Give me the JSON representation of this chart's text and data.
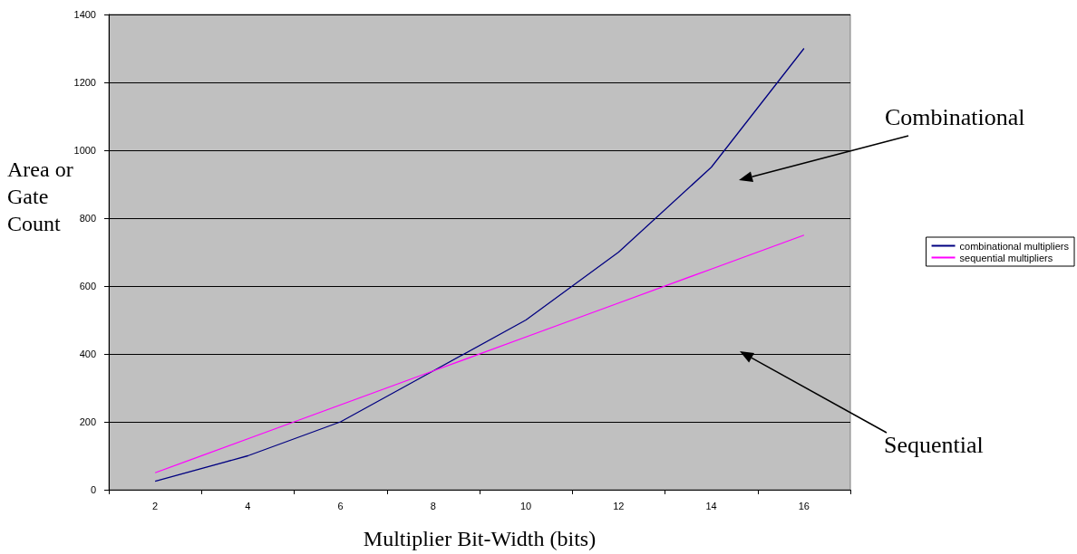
{
  "chart_data": {
    "type": "line",
    "xlabel": "Multiplier Bit-Width (bits)",
    "ylabel": "Area or Gate Count",
    "categories": [
      "2",
      "4",
      "6",
      "8",
      "10",
      "12",
      "14",
      "16"
    ],
    "series": [
      {
        "name": "combinational multipliers",
        "color": "#000080",
        "values": [
          25,
          100,
          200,
          350,
          500,
          700,
          950,
          1300
        ]
      },
      {
        "name": "sequential multipliers",
        "color": "#ff00ff",
        "values": [
          50,
          150,
          250,
          350,
          450,
          550,
          650,
          750
        ]
      }
    ],
    "ylim": [
      0,
      1400
    ],
    "yticks": [
      0,
      200,
      400,
      600,
      800,
      1000,
      1200,
      1400
    ],
    "grid": "y",
    "legend": "right",
    "marker": "none",
    "annotations": [
      "Combinational",
      "Sequential"
    ]
  }
}
